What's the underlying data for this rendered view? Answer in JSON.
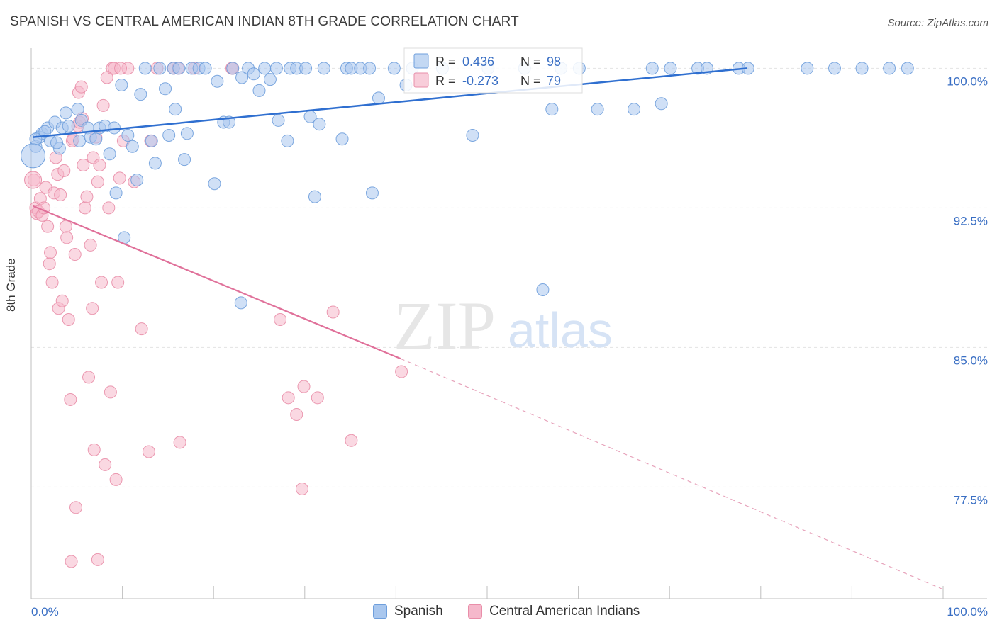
{
  "title": "SPANISH VS CENTRAL AMERICAN INDIAN 8TH GRADE CORRELATION CHART",
  "source": "Source: ZipAtlas.com",
  "watermark": {
    "zip": "ZIP",
    "atlas": "atlas"
  },
  "chart_data": {
    "type": "scatter",
    "title": "SPANISH VS CENTRAL AMERICAN INDIAN 8TH GRADE CORRELATION CHART",
    "xlabel": "",
    "ylabel": "8th Grade",
    "xlim": [
      0,
      100
    ],
    "ylim": [
      71.5,
      100.7
    ],
    "x_tick_labels": [
      "0.0%",
      "100.0%"
    ],
    "y_ticks": [
      77.5,
      85.0,
      92.5,
      100.0
    ],
    "y_tick_labels": [
      "77.5%",
      "85.0%",
      "92.5%",
      "100.0%"
    ],
    "grid": true,
    "legend_top": [
      {
        "r_label": "R =",
        "r_value": "0.436",
        "n_label": "N =",
        "n_value": "98",
        "color": "#a9c7ee"
      },
      {
        "r_label": "R =",
        "r_value": "-0.273",
        "n_label": "N =",
        "n_value": "79",
        "color": "#f5b8cb"
      }
    ],
    "series": [
      {
        "name": "Spanish",
        "color": "#a9c7ee",
        "edge": "#6f9fdc",
        "trend": {
          "x0": 0.2,
          "y0": 96.3,
          "x1": 78.5,
          "y1": 100.0,
          "color": "#2f6fd0"
        },
        "points": [
          [
            0.5,
            95.8
          ],
          [
            0.9,
            96.3
          ],
          [
            1.2,
            96.5
          ],
          [
            1.8,
            96.8
          ],
          [
            2.1,
            96.1
          ],
          [
            2.6,
            97.1
          ],
          [
            3.1,
            95.7
          ],
          [
            3.4,
            96.8
          ],
          [
            4.1,
            96.9
          ],
          [
            5.1,
            97.8
          ],
          [
            5.3,
            96.1
          ],
          [
            5.5,
            97.2
          ],
          [
            6.2,
            96.8
          ],
          [
            6.5,
            96.3
          ],
          [
            7.1,
            96.2
          ],
          [
            7.5,
            96.8
          ],
          [
            8.1,
            96.9
          ],
          [
            8.6,
            95.4
          ],
          [
            9.1,
            96.8
          ],
          [
            9.3,
            93.3
          ],
          [
            9.9,
            99.1
          ],
          [
            10.2,
            90.9
          ],
          [
            10.6,
            96.4
          ],
          [
            11.1,
            95.8
          ],
          [
            11.6,
            94.0
          ],
          [
            12.0,
            98.6
          ],
          [
            12.5,
            100.0
          ],
          [
            13.2,
            96.1
          ],
          [
            13.6,
            94.9
          ],
          [
            14.1,
            100.0
          ],
          [
            14.7,
            98.9
          ],
          [
            15.1,
            96.4
          ],
          [
            15.6,
            100.0
          ],
          [
            16.2,
            100.0
          ],
          [
            16.8,
            95.1
          ],
          [
            17.1,
            96.5
          ],
          [
            17.6,
            100.0
          ],
          [
            18.4,
            100.0
          ],
          [
            19.1,
            100.0
          ],
          [
            20.1,
            93.8
          ],
          [
            20.4,
            99.3
          ],
          [
            21.1,
            97.1
          ],
          [
            21.7,
            97.1
          ],
          [
            22.1,
            100.0
          ],
          [
            23.1,
            99.5
          ],
          [
            23.8,
            100.0
          ],
          [
            24.4,
            99.7
          ],
          [
            25.0,
            98.8
          ],
          [
            25.6,
            100.0
          ],
          [
            26.2,
            99.4
          ],
          [
            26.9,
            100.0
          ],
          [
            27.1,
            97.2
          ],
          [
            28.1,
            96.1
          ],
          [
            28.4,
            100.0
          ],
          [
            29.1,
            100.0
          ],
          [
            30.1,
            100.0
          ],
          [
            30.6,
            97.4
          ],
          [
            31.1,
            93.1
          ],
          [
            31.6,
            97.0
          ],
          [
            32.1,
            100.0
          ],
          [
            34.1,
            96.2
          ],
          [
            34.6,
            100.0
          ],
          [
            35.1,
            100.0
          ],
          [
            36.1,
            100.0
          ],
          [
            37.1,
            100.0
          ],
          [
            37.4,
            93.3
          ],
          [
            38.1,
            98.4
          ],
          [
            39.8,
            100.0
          ],
          [
            41.1,
            99.1
          ],
          [
            41.8,
            100.0
          ],
          [
            45.1,
            100.0
          ],
          [
            50.1,
            100.0
          ],
          [
            54.1,
            100.0
          ],
          [
            57.1,
            97.8
          ],
          [
            58.1,
            100.0
          ],
          [
            60.1,
            100.0
          ],
          [
            62.1,
            97.8
          ],
          [
            66.1,
            97.8
          ],
          [
            68.1,
            100.0
          ],
          [
            69.1,
            98.1
          ],
          [
            70.1,
            100.0
          ],
          [
            73.1,
            100.0
          ],
          [
            74.1,
            100.0
          ],
          [
            77.6,
            100.0
          ],
          [
            78.6,
            100.0
          ],
          [
            85.1,
            100.0
          ],
          [
            88.1,
            100.0
          ],
          [
            91.1,
            100.0
          ],
          [
            94.1,
            100.0
          ],
          [
            96.1,
            100.0
          ],
          [
            0.5,
            96.2
          ],
          [
            1.5,
            96.6
          ],
          [
            2.8,
            96.0
          ],
          [
            3.8,
            97.6
          ],
          [
            15.8,
            97.8
          ],
          [
            48.4,
            96.4
          ],
          [
            56.1,
            88.1
          ],
          [
            23.0,
            87.4
          ]
        ]
      },
      {
        "name": "Central American Indians",
        "color": "#f5b8cb",
        "edge": "#e98ea9",
        "trend": {
          "x0": 0.2,
          "y0": 92.6,
          "x1": 40.5,
          "y1": 84.4,
          "color": "#e0719a"
        },
        "trend_dashed": {
          "x0": 40.5,
          "y0": 84.4,
          "x1": 100,
          "y1": 72.0,
          "color": "#e7a3bb"
        },
        "points": [
          [
            0.3,
            94.0
          ],
          [
            0.5,
            92.5
          ],
          [
            0.6,
            92.2
          ],
          [
            0.8,
            92.3
          ],
          [
            1.0,
            93.0
          ],
          [
            1.2,
            92.1
          ],
          [
            1.4,
            92.5
          ],
          [
            1.6,
            93.6
          ],
          [
            1.8,
            91.5
          ],
          [
            2.0,
            89.5
          ],
          [
            2.1,
            90.1
          ],
          [
            2.3,
            88.5
          ],
          [
            2.5,
            93.3
          ],
          [
            2.7,
            95.2
          ],
          [
            2.9,
            94.3
          ],
          [
            3.0,
            87.1
          ],
          [
            3.2,
            93.2
          ],
          [
            3.4,
            87.5
          ],
          [
            3.6,
            94.5
          ],
          [
            3.8,
            91.5
          ],
          [
            3.9,
            90.9
          ],
          [
            4.1,
            86.5
          ],
          [
            4.3,
            82.2
          ],
          [
            4.5,
            96.1
          ],
          [
            4.8,
            90.0
          ],
          [
            4.9,
            76.4
          ],
          [
            5.1,
            96.9
          ],
          [
            5.2,
            98.7
          ],
          [
            5.3,
            97.1
          ],
          [
            5.5,
            99.0
          ],
          [
            5.7,
            94.8
          ],
          [
            5.9,
            92.5
          ],
          [
            6.1,
            93.1
          ],
          [
            6.3,
            83.4
          ],
          [
            6.5,
            90.5
          ],
          [
            6.7,
            87.1
          ],
          [
            6.8,
            95.2
          ],
          [
            6.9,
            79.5
          ],
          [
            7.1,
            96.3
          ],
          [
            7.3,
            93.9
          ],
          [
            7.5,
            94.8
          ],
          [
            7.7,
            88.5
          ],
          [
            7.9,
            98.0
          ],
          [
            8.1,
            78.7
          ],
          [
            8.3,
            99.5
          ],
          [
            8.5,
            92.5
          ],
          [
            8.7,
            82.6
          ],
          [
            8.9,
            100.0
          ],
          [
            9.1,
            100.0
          ],
          [
            9.3,
            77.9
          ],
          [
            9.5,
            88.5
          ],
          [
            9.7,
            94.1
          ],
          [
            10.1,
            96.1
          ],
          [
            10.6,
            100.0
          ],
          [
            11.3,
            93.9
          ],
          [
            12.1,
            86.0
          ],
          [
            12.9,
            79.4
          ],
          [
            13.8,
            100.0
          ],
          [
            15.6,
            100.0
          ],
          [
            16.1,
            100.0
          ],
          [
            16.3,
            79.9
          ],
          [
            22.1,
            100.0
          ],
          [
            27.3,
            86.5
          ],
          [
            28.2,
            82.3
          ],
          [
            29.1,
            81.4
          ],
          [
            29.7,
            77.4
          ],
          [
            29.9,
            82.9
          ],
          [
            31.4,
            82.3
          ],
          [
            33.1,
            86.9
          ],
          [
            35.1,
            80.0
          ],
          [
            40.6,
            83.7
          ],
          [
            4.4,
            73.5
          ],
          [
            7.3,
            73.6
          ],
          [
            4.6,
            96.2
          ],
          [
            5.6,
            97.3
          ],
          [
            13.1,
            96.1
          ],
          [
            9.8,
            100.0
          ],
          [
            17.9,
            100.0
          ],
          [
            22.0,
            100.0
          ]
        ]
      }
    ]
  },
  "legend_bottom": [
    {
      "label": "Spanish",
      "color": "#a9c7ee"
    },
    {
      "label": "Central American Indians",
      "color": "#f5b8cb"
    }
  ]
}
